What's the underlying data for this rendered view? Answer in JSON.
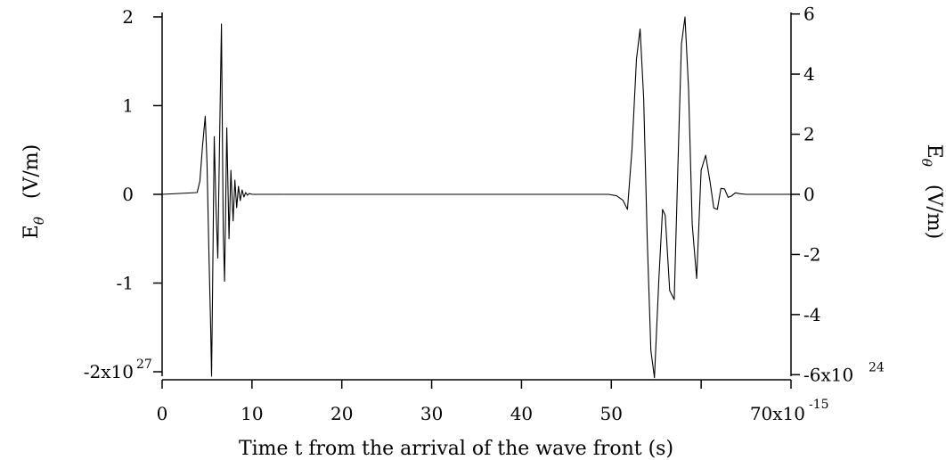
{
  "chart_data": {
    "type": "line",
    "xlabel": "Time t from the arrival of the wave front   (s)",
    "ylabel_left": {
      "main": "E",
      "sub": "θ",
      "unit": "(V/m)"
    },
    "ylabel_right": {
      "main": "E",
      "sub": "θ",
      "unit": "(V/m)"
    },
    "x_axis": {
      "range": [
        0,
        7e-14
      ],
      "ticks": [
        0,
        1e-14,
        2e-14,
        3e-14,
        4e-14,
        5e-14,
        6e-14,
        7e-14
      ],
      "tick_labels": [
        "0",
        "10",
        "20",
        "30",
        "40",
        "50",
        "",
        "70x10"
      ],
      "exponent_label": "-15"
    },
    "y_left": {
      "range": [
        -2.05e+27,
        2.05e+27
      ],
      "ticks": [
        -2e+27,
        -1e+27,
        0,
        1e+27,
        2e+27
      ],
      "tick_labels": [
        "-2x10",
        "-1",
        "0",
        "1",
        "2"
      ],
      "exponent_label": "27"
    },
    "y_right": {
      "range": [
        -6.05e+24,
        6.05e+24
      ],
      "ticks": [
        -6e+24,
        -4e+24,
        -2e+24,
        0,
        2e+24,
        4e+24,
        6e+24
      ],
      "tick_labels": [
        "-6x10",
        "-4",
        "-2",
        "0",
        "2",
        "4",
        "6"
      ],
      "exponent_label": "24"
    },
    "series": [
      {
        "axis": "left",
        "x": [
          0,
          3.9e-15,
          4.2e-15,
          4.5e-15,
          4.8e-15,
          5e-15,
          5.2e-15,
          5.4e-15,
          5.5e-15,
          5.6e-15,
          5.8e-15,
          6e-15,
          6.2e-15,
          6.4e-15,
          6.6e-15,
          6.8e-15,
          6.95e-15,
          7.2e-15,
          7.45e-15,
          7.65e-15,
          7.9e-15,
          8.1e-15,
          8.3e-15,
          8.5e-15,
          8.7e-15,
          8.9e-15,
          9.1e-15,
          9.3e-15,
          9.5e-15,
          9.7e-15,
          1e-14,
          1.05e-14,
          1.35e-14
        ],
        "y": [
          0,
          2e+25,
          1.5e+26,
          5.5e+26,
          8.8e+26,
          3.5e+26,
          -6e+26,
          -1.5e+27,
          -2.05e+27,
          -1.2e+27,
          6.5e+26,
          -1.5e+26,
          -7.2e+26,
          6e+26,
          1.92e+27,
          -4e+26,
          -9.8e+26,
          7.5e+26,
          -5e+26,
          2.7e+26,
          -3e+26,
          1.6e+26,
          -1.5e+26,
          9e+25,
          -7e+25,
          5e+25,
          -3e+25,
          2e+25,
          -1e+25,
          1e+25,
          0,
          0,
          0
        ]
      },
      {
        "axis": "right",
        "x": [
          1.35e-14,
          4.97e-14,
          5.06e-14,
          5.13e-14,
          5.18e-14,
          5.23e-14,
          5.28e-14,
          5.32e-14,
          5.36e-14,
          5.4e-14,
          5.44e-14,
          5.48e-14,
          5.53e-14,
          5.57e-14,
          5.6e-14,
          5.65e-14,
          5.7e-14,
          5.74e-14,
          5.78e-14,
          5.82e-14,
          5.86e-14,
          5.9e-14,
          5.95e-14,
          6e-14,
          6.05e-14,
          6.1e-14,
          6.14e-14,
          6.18e-14,
          6.22e-14,
          6.26e-14,
          6.3e-14,
          6.34e-14,
          6.38e-14,
          6.43e-14,
          6.5e-14,
          7e-14
        ],
        "y": [
          0,
          0,
          -5e+22,
          -2e+23,
          -5e+23,
          1.5e+24,
          4.5e+24,
          5.5e+24,
          3.2e+24,
          -1.5e+24,
          -5.2e+24,
          -6.1e+24,
          -2.8e+24,
          -5e+23,
          -7e+23,
          -3.2e+24,
          -3.5e+24,
          8e+23,
          5e+24,
          5.9e+24,
          3.5e+24,
          -1e+24,
          -2.8e+24,
          8e+23,
          1.3e+24,
          4e+23,
          -4.5e+23,
          -5e+23,
          2e+23,
          1.8e+23,
          -1e+23,
          -5e+22,
          5e+22,
          2e+22,
          0,
          0
        ]
      }
    ]
  }
}
